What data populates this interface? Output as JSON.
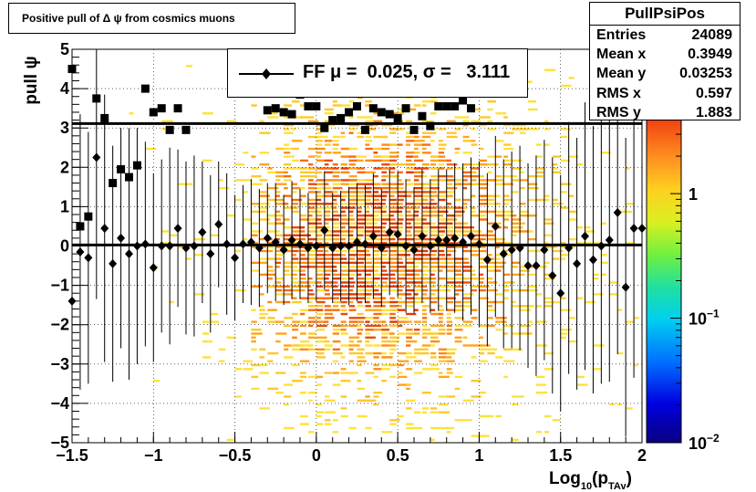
{
  "title": "Positive pull of Δ ψ from cosmics muons",
  "stats": {
    "name": "PullPsiPos",
    "rows": [
      {
        "label": "Entries",
        "value": "24089"
      },
      {
        "label": "Mean x",
        "value": "0.3949"
      },
      {
        "label": "Mean y",
        "value": "0.03253"
      },
      {
        "label": "RMS x",
        "value": "0.597"
      },
      {
        "label": "RMS y",
        "value": "1.883"
      }
    ]
  },
  "legend": {
    "label": "FF μ =  0.025, σ =   3.111"
  },
  "colorbar": {
    "labels": [
      "1",
      "10",
      "10"
    ],
    "exponents": [
      "",
      "−1",
      "−2"
    ]
  },
  "chart_data": {
    "type": "scatter",
    "xlabel": "Log",
    "xlabel_sub": "10",
    "xlabel_mid": "(p",
    "xlabel_sub2": "TAv",
    "xlabel_end": ")",
    "ylabel": "pull ψ",
    "xlim": [
      -1.5,
      2
    ],
    "ylim": [
      -5,
      5
    ],
    "xticks": [
      "−1.5",
      "−1",
      "−0.5",
      "0",
      "0.5",
      "1",
      "1.5",
      "2"
    ],
    "yticks": [
      "−5",
      "−4",
      "−3",
      "−2",
      "−1",
      "0",
      "1",
      "2",
      "3",
      "4",
      "5"
    ],
    "grid": true,
    "log_color_scale": true,
    "colorbar_range": [
      0.01,
      4
    ],
    "hlines": [
      3.111,
      0.025
    ],
    "series": [
      {
        "name": "FF",
        "marker": "diamond",
        "x": [
          -1.5,
          -1.45,
          -1.4,
          -1.35,
          -1.3,
          -1.25,
          -1.2,
          -1.15,
          -1.1,
          -1.05,
          -1.0,
          -0.95,
          -0.9,
          -0.85,
          -0.8,
          -0.75,
          -0.7,
          -0.65,
          -0.6,
          -0.55,
          -0.5,
          -0.45,
          -0.4,
          -0.35,
          -0.3,
          -0.25,
          -0.2,
          -0.15,
          -0.1,
          -0.05,
          0.0,
          0.05,
          0.1,
          0.15,
          0.2,
          0.25,
          0.3,
          0.35,
          0.4,
          0.45,
          0.5,
          0.55,
          0.6,
          0.65,
          0.7,
          0.75,
          0.8,
          0.85,
          0.9,
          0.95,
          1.0,
          1.05,
          1.1,
          1.15,
          1.2,
          1.25,
          1.3,
          1.35,
          1.4,
          1.45,
          1.5,
          1.55,
          1.6,
          1.65,
          1.7,
          1.75,
          1.8,
          1.85,
          1.9,
          1.95,
          2.0
        ],
        "y": [
          -1.4,
          -0.15,
          -0.3,
          2.25,
          0.45,
          -0.45,
          0.2,
          -0.2,
          0.0,
          0.05,
          -0.55,
          0.0,
          0.0,
          0.45,
          -0.05,
          0.0,
          0.35,
          -0.2,
          0.55,
          0.05,
          -0.3,
          0.05,
          0.1,
          -0.05,
          0.2,
          0.1,
          -0.1,
          0.15,
          0.05,
          -0.05,
          0.0,
          0.4,
          -0.05,
          0.0,
          0.0,
          0.1,
          0.05,
          0.25,
          -0.05,
          0.35,
          0.3,
          0.0,
          -0.1,
          0.25,
          0.0,
          0.15,
          0.15,
          0.2,
          0.1,
          0.25,
          0.05,
          -0.35,
          0.5,
          -0.2,
          -0.1,
          -0.05,
          -0.5,
          -0.5,
          -0.1,
          -0.75,
          -1.2,
          -0.05,
          -0.45,
          0.25,
          -0.35,
          0.0,
          0.15,
          0.85,
          -1.05,
          0.45,
          0.45
        ],
        "yerr": [
          4,
          3.5,
          3.2,
          3.6,
          3.4,
          3.0,
          2.8,
          3.2,
          3.0,
          2.6,
          2.4,
          2.2,
          2.5,
          2.0,
          2.2,
          2.3,
          1.8,
          2.0,
          1.6,
          1.8,
          1.6,
          1.5,
          1.6,
          1.5,
          1.4,
          1.5,
          1.4,
          1.5,
          1.4,
          1.4,
          1.4,
          1.5,
          1.4,
          1.4,
          1.5,
          1.5,
          1.5,
          1.6,
          1.5,
          1.6,
          1.6,
          1.7,
          1.6,
          1.7,
          1.7,
          1.8,
          1.8,
          1.9,
          2.0,
          2.0,
          2.1,
          2.2,
          2.3,
          2.4,
          2.5,
          2.6,
          2.6,
          2.8,
          2.8,
          3.0,
          3.0,
          3.2,
          3.2,
          3.4,
          3.4,
          3.5,
          3.6,
          3.6,
          3.8,
          3.8,
          3.8
        ]
      },
      {
        "name": "",
        "marker": "square",
        "x": [
          -1.5,
          -1.45,
          -1.4,
          -1.35,
          -1.3,
          -1.25,
          -1.2,
          -1.15,
          -1.1,
          -1.05,
          -1.0,
          -0.95,
          -0.9,
          -0.85,
          -0.8,
          -0.3,
          -0.25,
          -0.2,
          -0.15,
          -0.1,
          -0.05,
          0.0,
          0.05,
          0.1,
          0.15,
          0.2,
          0.25,
          0.3,
          0.35,
          0.4,
          0.45,
          0.5,
          0.55,
          0.6,
          0.65,
          0.7,
          0.75,
          0.8,
          0.85,
          0.9,
          0.95
        ],
        "y": [
          4.5,
          0.5,
          0.75,
          3.75,
          3.25,
          1.6,
          1.95,
          1.75,
          2.05,
          4.0,
          3.4,
          3.5,
          2.95,
          3.5,
          2.95,
          3.45,
          3.5,
          3.4,
          3.35,
          3.85,
          3.55,
          3.55,
          3.0,
          3.2,
          3.25,
          3.4,
          3.55,
          2.95,
          3.5,
          3.4,
          3.35,
          3.25,
          3.5,
          2.95,
          3.3,
          3.05,
          3.55,
          3.55,
          3.55,
          3.7,
          3.5
        ]
      }
    ]
  }
}
